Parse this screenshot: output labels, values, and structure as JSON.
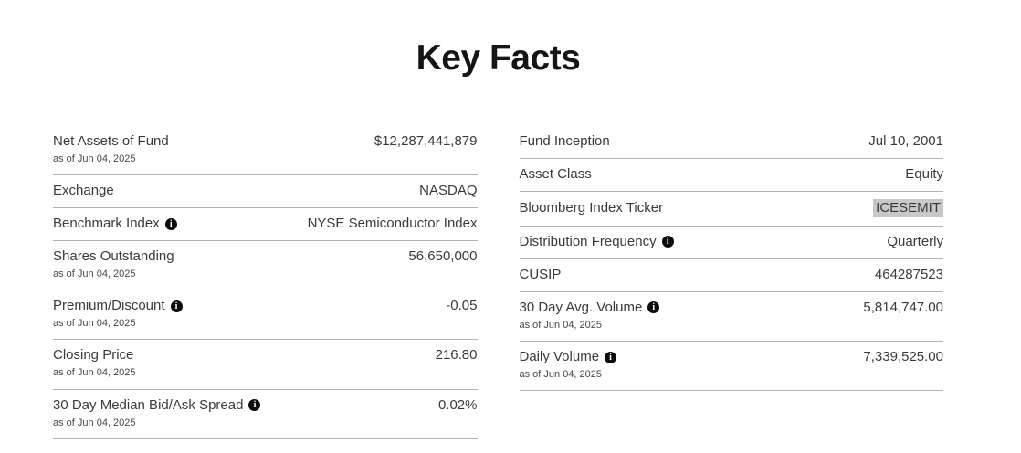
{
  "page": {
    "title": "Key Facts"
  },
  "icons": {
    "info": "i"
  },
  "colors": {
    "text": "#3a3a3a",
    "divider": "#b2b2b2",
    "ticker_highlight": "#c8c8c8",
    "info_icon_bg": "#0c0c0c"
  },
  "columns": {
    "left": [
      {
        "label": "Net Assets of Fund",
        "asof": "as of Jun 04, 2025",
        "value": "$12,287,441,879",
        "info": false
      },
      {
        "label": "Exchange",
        "value": "NASDAQ",
        "info": false
      },
      {
        "label": "Benchmark Index",
        "value": "NYSE Semiconductor Index",
        "info": true
      },
      {
        "label": "Shares Outstanding",
        "asof": "as of Jun 04, 2025",
        "value": "56,650,000",
        "info": false
      },
      {
        "label": "Premium/Discount",
        "asof": "as of Jun 04, 2025",
        "value": "-0.05",
        "info": true
      },
      {
        "label": "Closing Price",
        "asof": "as of Jun 04, 2025",
        "value": "216.80",
        "info": false
      },
      {
        "label": "30 Day Median Bid/Ask Spread",
        "asof": "as of Jun 04, 2025",
        "value": "0.02%",
        "info": true
      }
    ],
    "right": [
      {
        "label": "Fund Inception",
        "value": "Jul 10, 2001",
        "info": false
      },
      {
        "label": "Asset Class",
        "value": "Equity",
        "info": false
      },
      {
        "label": "Bloomberg Index Ticker",
        "value": "ICESEMIT",
        "info": false,
        "highlighted": true
      },
      {
        "label": "Distribution Frequency",
        "value": "Quarterly",
        "info": true
      },
      {
        "label": "CUSIP",
        "value": "464287523",
        "info": false
      },
      {
        "label": "30 Day Avg. Volume",
        "asof": "as of Jun 04, 2025",
        "value": "5,814,747.00",
        "info": true
      },
      {
        "label": "Daily Volume",
        "asof": "as of Jun 04, 2025",
        "value": "7,339,525.00",
        "info": true
      }
    ]
  }
}
